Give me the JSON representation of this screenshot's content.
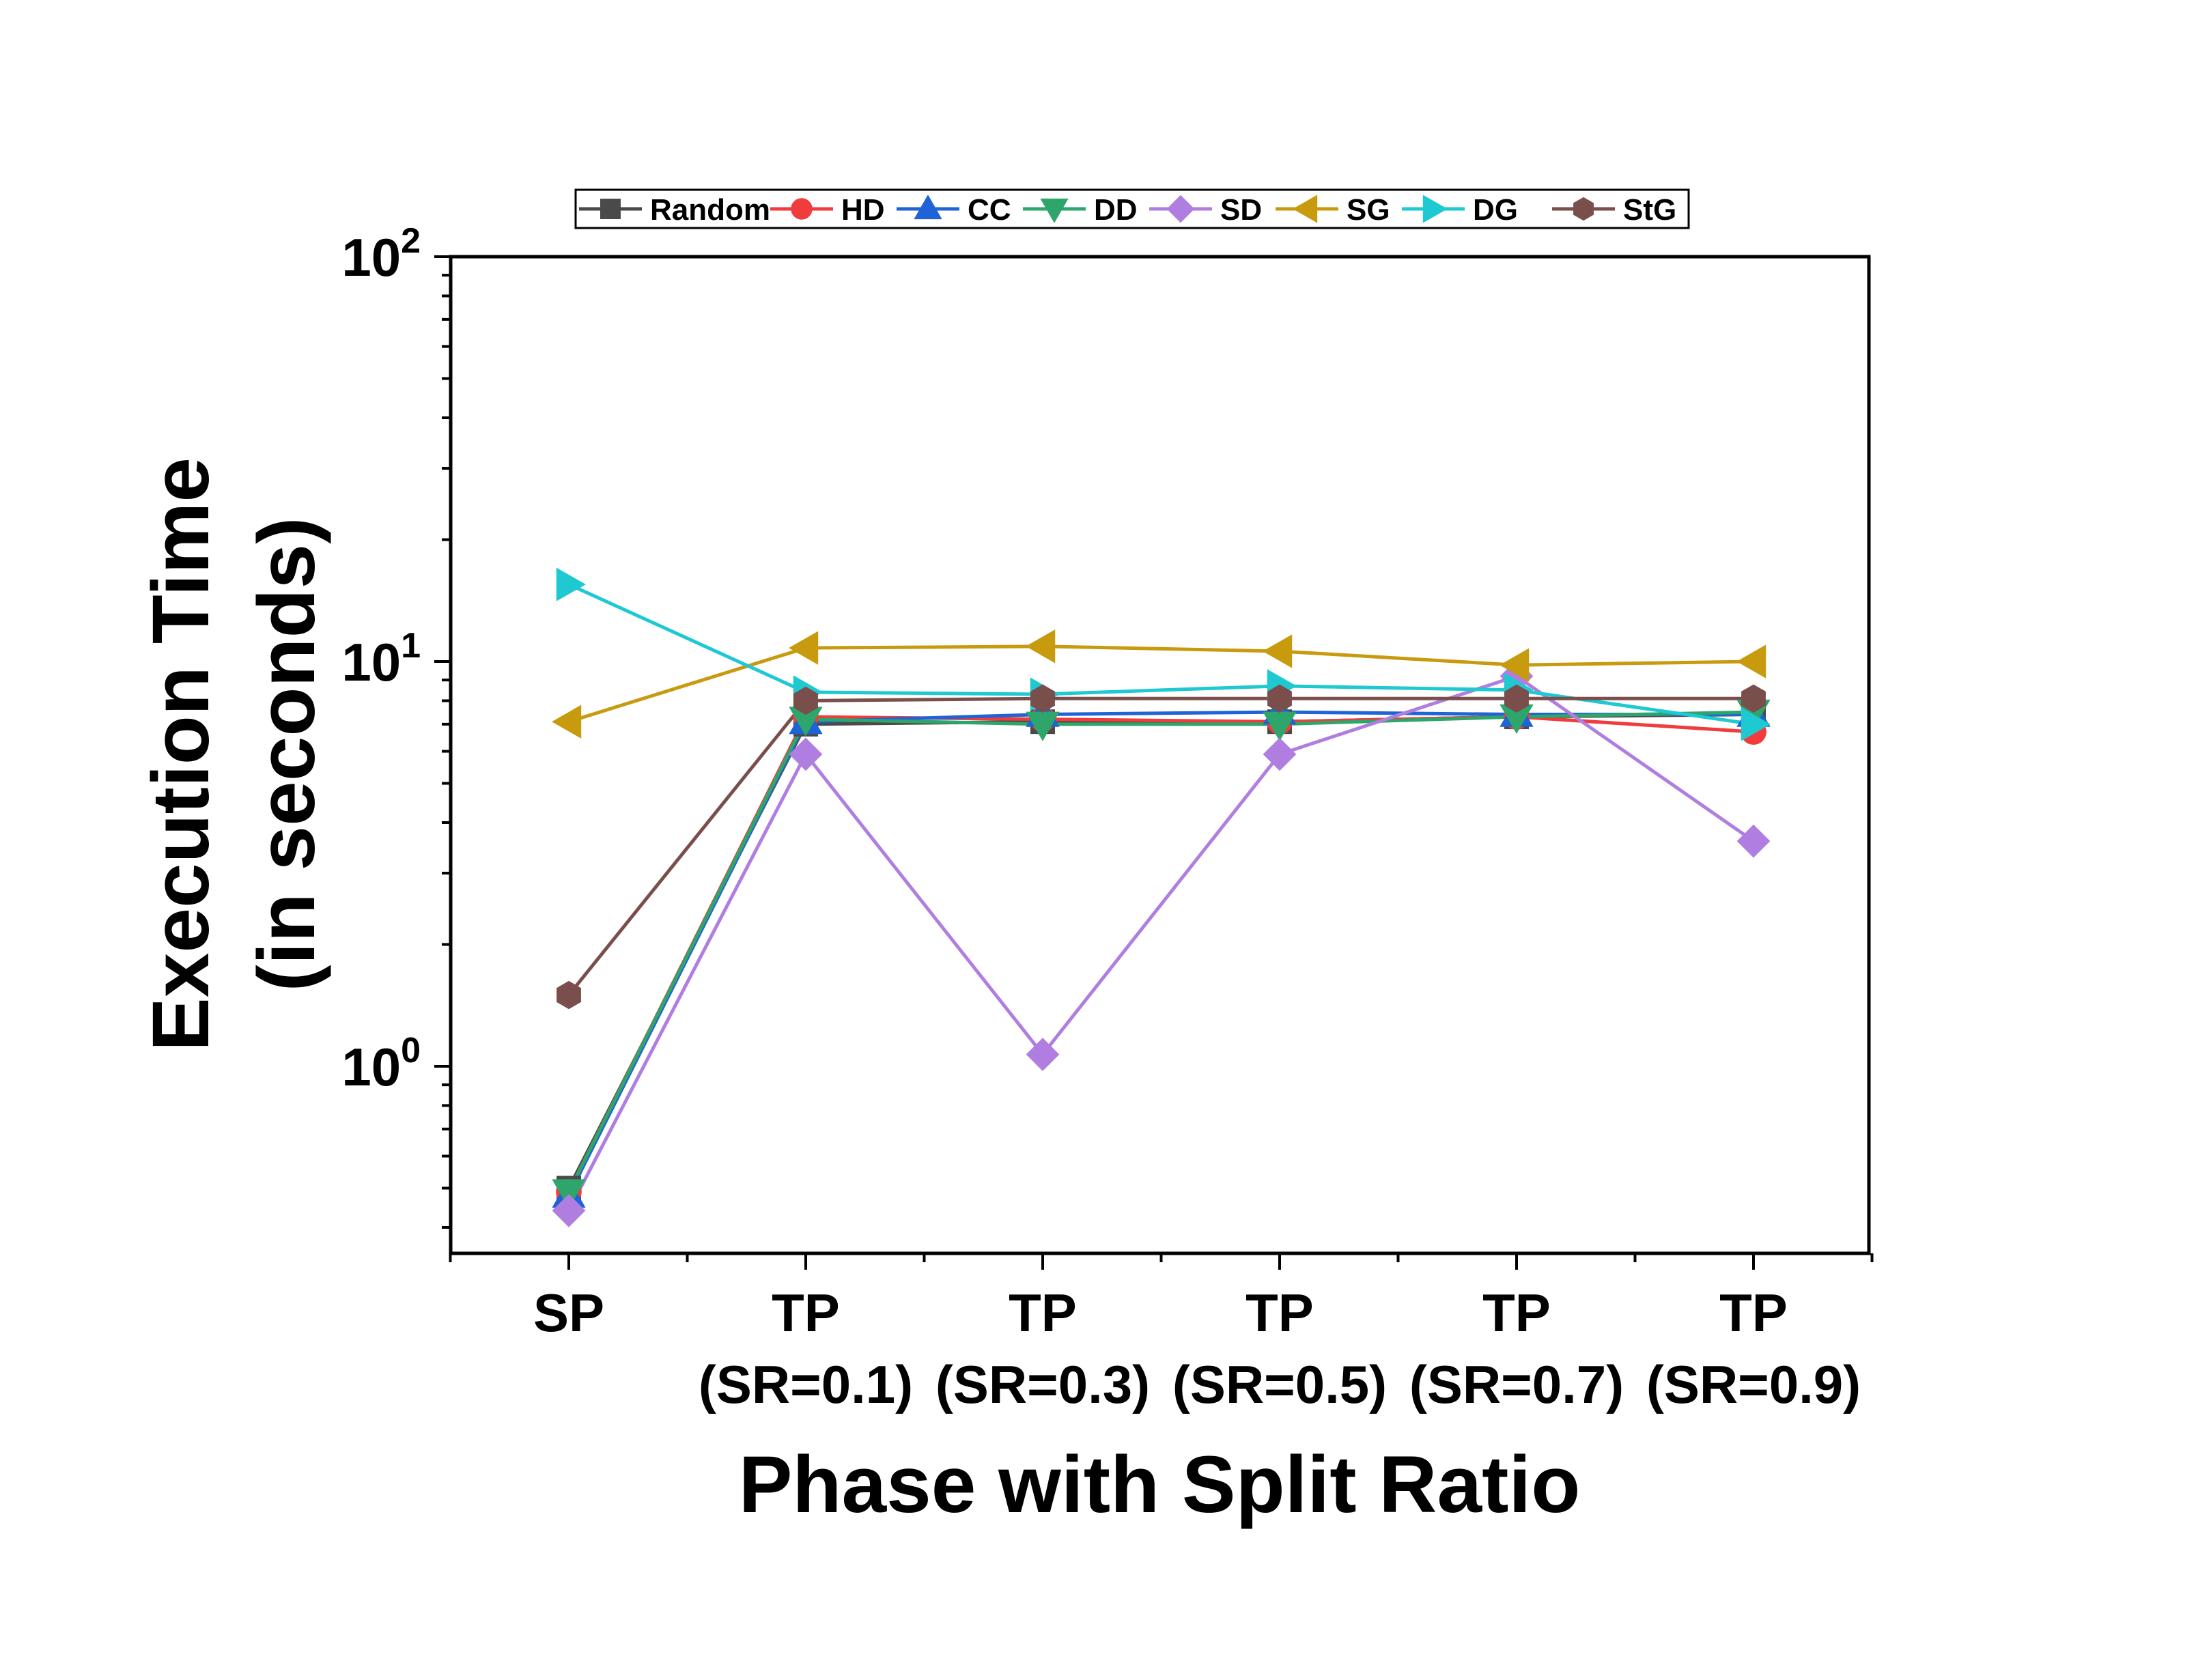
{
  "chart_data": {
    "type": "line",
    "y_scale": "log",
    "xlabel": "Phase with Split Ratio",
    "ylabel_line1": "Execution Time",
    "ylabel_line2": "(in seconds)",
    "ylim": [
      0.4,
      100
    ],
    "y_ticks": [
      {
        "value": 1,
        "base": "10",
        "exp": "0"
      },
      {
        "value": 10,
        "base": "10",
        "exp": "1"
      },
      {
        "value": 100,
        "base": "10",
        "exp": "2"
      }
    ],
    "categories": [
      {
        "line1": "SP",
        "line2": ""
      },
      {
        "line1": "TP",
        "line2": "(SR=0.1)"
      },
      {
        "line1": "TP",
        "line2": "(SR=0.3)"
      },
      {
        "line1": "TP",
        "line2": "(SR=0.5)"
      },
      {
        "line1": "TP",
        "line2": "(SR=0.7)"
      },
      {
        "line1": "TP",
        "line2": "(SR=0.9)"
      }
    ],
    "series": [
      {
        "name": "Random",
        "color": "#4a4a4a",
        "marker": "square",
        "values": [
          0.5,
          7.0,
          7.1,
          7.1,
          7.3,
          7.4
        ]
      },
      {
        "name": "HD",
        "color": "#f03c3c",
        "marker": "circle",
        "values": [
          0.49,
          7.3,
          7.2,
          7.1,
          7.3,
          6.7
        ]
      },
      {
        "name": "CC",
        "color": "#1f63d6",
        "marker": "triangle-up",
        "values": [
          0.48,
          7.1,
          7.4,
          7.5,
          7.4,
          7.4
        ]
      },
      {
        "name": "DD",
        "color": "#2ea66b",
        "marker": "triangle-down",
        "values": [
          0.49,
          7.2,
          7.0,
          7.0,
          7.3,
          7.5
        ]
      },
      {
        "name": "SD",
        "color": "#b07ee0",
        "marker": "diamond",
        "values": [
          0.44,
          5.9,
          1.07,
          5.9,
          9.2,
          3.6
        ]
      },
      {
        "name": "SG",
        "color": "#c89b0f",
        "marker": "triangle-left",
        "values": [
          7.1,
          10.8,
          10.9,
          10.6,
          9.8,
          10.0
        ]
      },
      {
        "name": "DG",
        "color": "#1ec9d1",
        "marker": "triangle-right",
        "values": [
          15.5,
          8.4,
          8.3,
          8.7,
          8.5,
          7.0
        ]
      },
      {
        "name": "StG",
        "color": "#7a4e4a",
        "marker": "hexagon",
        "values": [
          1.5,
          8.0,
          8.1,
          8.1,
          8.1,
          8.1
        ]
      }
    ]
  }
}
